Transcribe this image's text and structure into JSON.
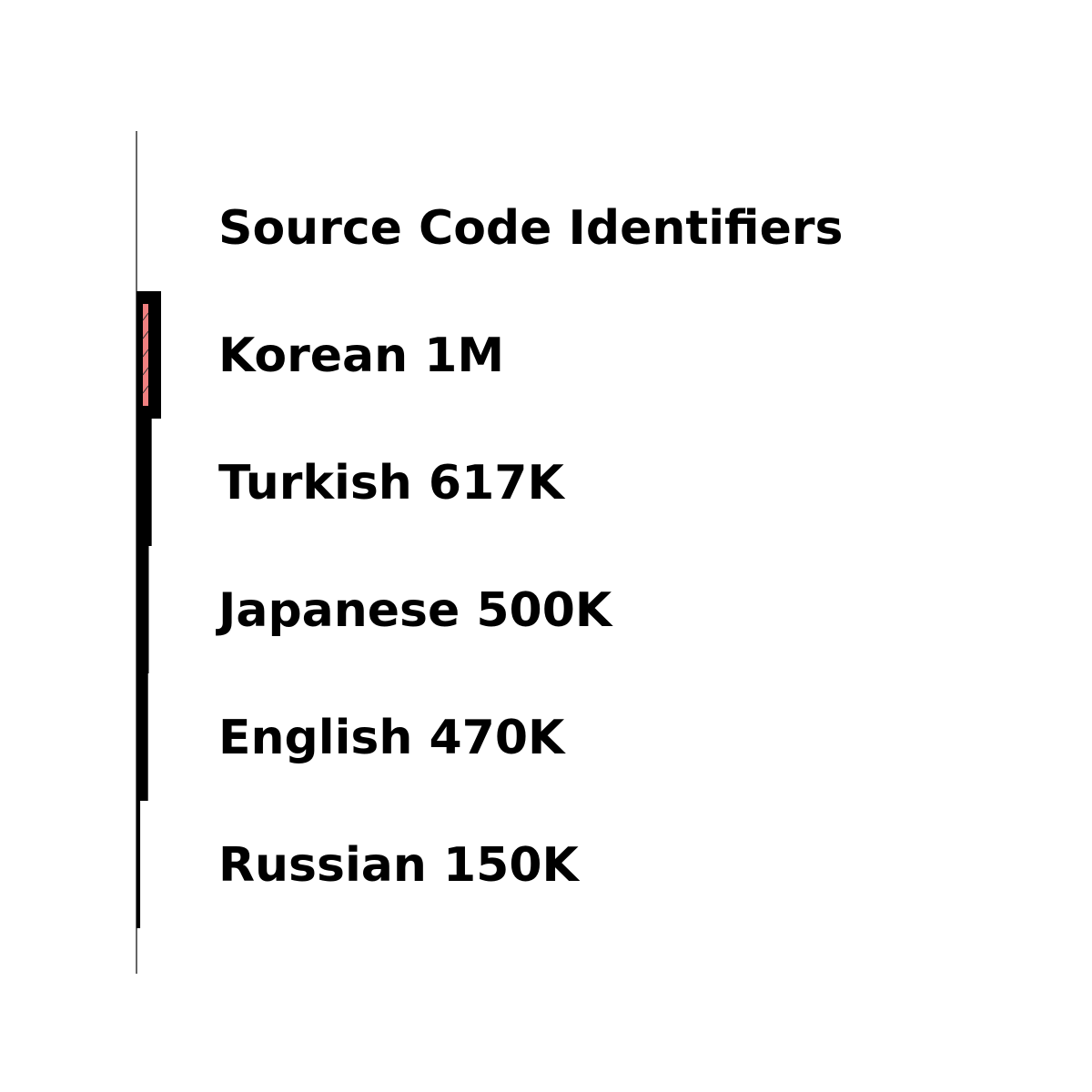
{
  "chart_data": {
    "type": "bar",
    "orientation": "horizontal",
    "categories": [
      "Source Code Identifiers",
      "Korean 1M",
      "Turkish 617K",
      "Japanese 500K",
      "English 470K",
      "Russian 150K"
    ],
    "values": [
      0,
      1000000,
      617000,
      500000,
      470000,
      150000
    ],
    "highlight_index": 1,
    "title": "",
    "xlabel": "",
    "ylabel": "",
    "grid": false,
    "legend": "none"
  },
  "colors": {
    "bar": "#000000",
    "highlight_fill": "#f08080",
    "axis": "#000000",
    "label": "#000000"
  }
}
